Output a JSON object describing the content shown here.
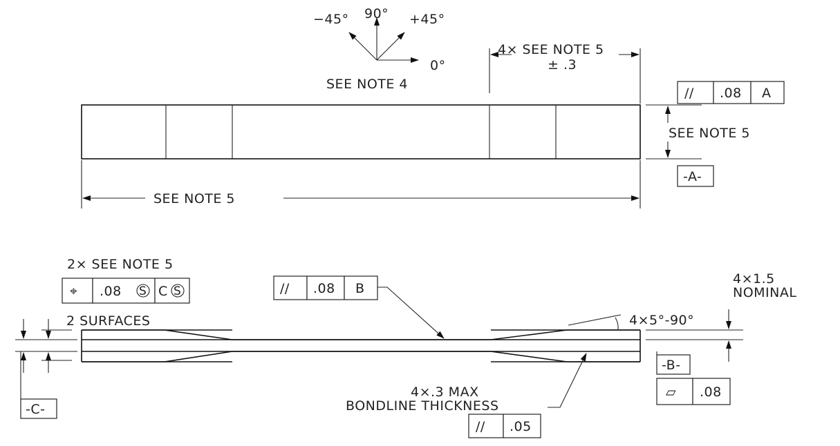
{
  "orientation": {
    "neg45": "−45°",
    "deg90": "90°",
    "pos45": "+45°",
    "deg0": "0°",
    "note": "SEE NOTE 4"
  },
  "top_view": {
    "tab_dim_line1": "4× SEE NOTE 5",
    "tab_dim_line2": "± .3",
    "height_note": "SEE NOTE 5",
    "length_note": "SEE NOTE 5",
    "parallel_fcf": {
      "symbol": "//",
      "tolerance": ".08",
      "datum": "A"
    },
    "datum_label": "-A-"
  },
  "side_view": {
    "position_note": "2× SEE NOTE 5",
    "position_fcf": {
      "symbol": "⌖",
      "tolerance": ".08",
      "modifier": "S",
      "datum": "C",
      "datum_modifier": "S"
    },
    "surfaces_note": "2 SURFACES",
    "center_fcf": {
      "symbol": "//",
      "tolerance": ".08",
      "datum": "B"
    },
    "taper_note": "4×5°-90°",
    "thickness_line1": "4×1.5",
    "thickness_line2": "NOMINAL",
    "datum_b": "-B-",
    "flatness_fcf": {
      "symbol": "▱",
      "tolerance": ".08"
    },
    "bondline_line1": "4×.3 MAX",
    "bondline_line2": "BONDLINE THICKNESS",
    "bondline_fcf": {
      "symbol": "//",
      "tolerance": ".05"
    },
    "datum_c": "-C-"
  }
}
